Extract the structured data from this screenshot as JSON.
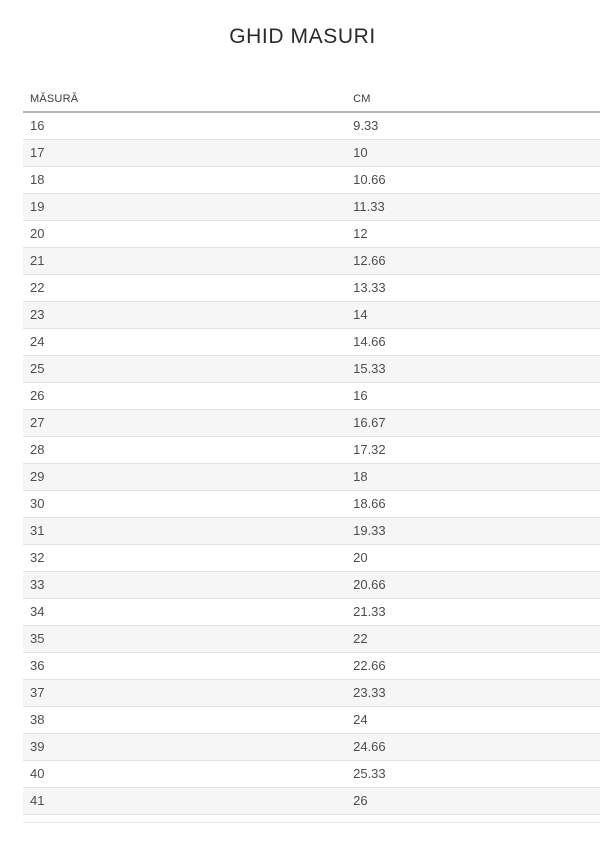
{
  "page": {
    "title": "GHID MASURI"
  },
  "table": {
    "columns": [
      "MĂSURĂ",
      "CM"
    ],
    "rows": [
      [
        "16",
        "9.33"
      ],
      [
        "17",
        "10"
      ],
      [
        "18",
        "10.66"
      ],
      [
        "19",
        "11.33"
      ],
      [
        "20",
        "12"
      ],
      [
        "21",
        "12.66"
      ],
      [
        "22",
        "13.33"
      ],
      [
        "23",
        "14"
      ],
      [
        "24",
        "14.66"
      ],
      [
        "25",
        "15.33"
      ],
      [
        "26",
        "16"
      ],
      [
        "27",
        "16.67"
      ],
      [
        "28",
        "17.32"
      ],
      [
        "29",
        "18"
      ],
      [
        "30",
        "18.66"
      ],
      [
        "31",
        "19.33"
      ],
      [
        "32",
        "20"
      ],
      [
        "33",
        "20.66"
      ],
      [
        "34",
        "21.33"
      ],
      [
        "35",
        "22"
      ],
      [
        "36",
        "22.66"
      ],
      [
        "37",
        "23.33"
      ],
      [
        "38",
        "24"
      ],
      [
        "39",
        "24.66"
      ],
      [
        "40",
        "25.33"
      ],
      [
        "41",
        "26"
      ]
    ]
  },
  "colors": {
    "bg": "#ffffff",
    "title": "#2b2b2b",
    "header_text": "#3c3c3c",
    "text": "#4d4d4d",
    "stripe": "#f6f6f6",
    "row_border": "#e4e4e4",
    "header_border": "#b5b5b5",
    "divider": "#e9e9e9"
  }
}
